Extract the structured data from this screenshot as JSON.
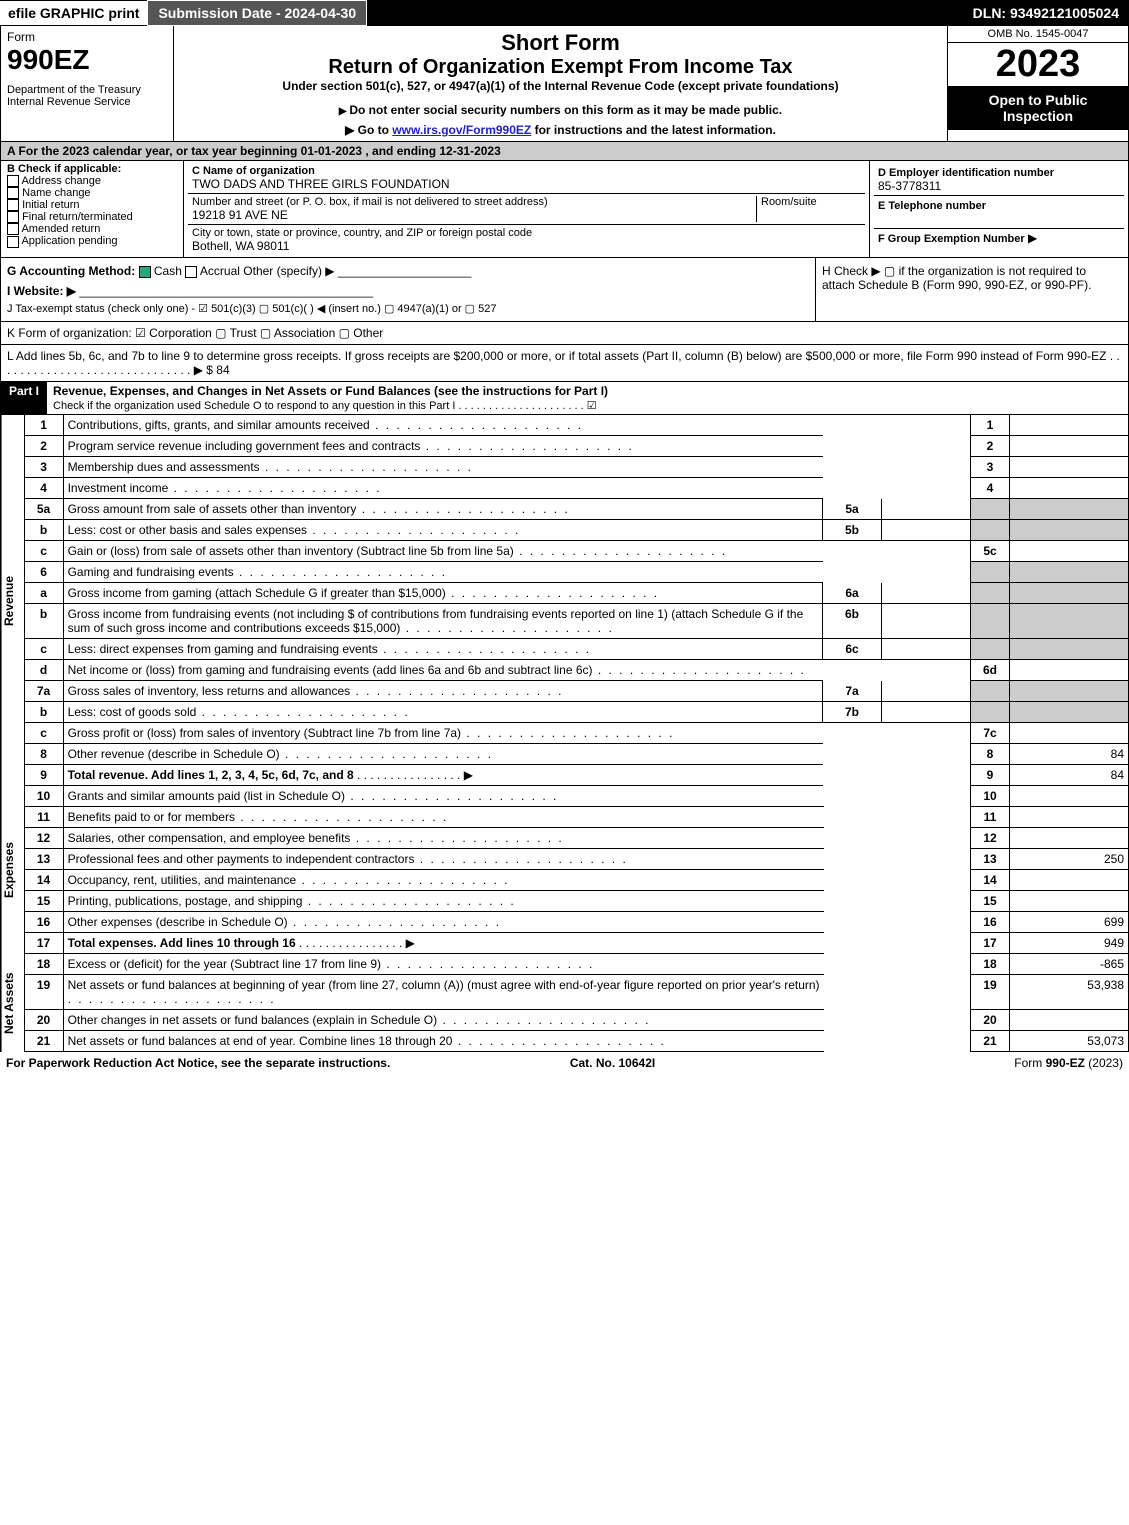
{
  "topbar": {
    "efile": "efile GRAPHIC print",
    "submission": "Submission Date - 2024-04-30",
    "dln": "DLN: 93492121005024"
  },
  "header": {
    "form": "Form",
    "form_no": "990EZ",
    "dept": "Department of the Treasury",
    "irs": "Internal Revenue Service",
    "short": "Short Form",
    "title": "Return of Organization Exempt From Income Tax",
    "under": "Under section 501(c), 527, or 4947(a)(1) of the Internal Revenue Code (except private foundations)",
    "ssn": "Do not enter social security numbers on this form as it may be made public.",
    "goto": "Go to ",
    "goto_link": "www.irs.gov/Form990EZ",
    "goto2": " for instructions and the latest information.",
    "omb": "OMB No. 1545-0047",
    "year": "2023",
    "open": "Open to Public Inspection"
  },
  "A": "A  For the 2023 calendar year, or tax year beginning 01-01-2023 , and ending 12-31-2023",
  "B": {
    "label": "B  Check if applicable:",
    "opts": [
      "Address change",
      "Name change",
      "Initial return",
      "Final return/terminated",
      "Amended return",
      "Application pending"
    ]
  },
  "C": {
    "label": "C Name of organization",
    "name": "TWO DADS AND THREE GIRLS FOUNDATION",
    "addr_label": "Number and street (or P. O. box, if mail is not delivered to street address)",
    "room": "Room/suite",
    "addr": "19218 91 AVE NE",
    "city_label": "City or town, state or province, country, and ZIP or foreign postal code",
    "city": "Bothell, WA  98011"
  },
  "D": {
    "label": "D Employer identification number",
    "ein": "85-3778311",
    "E": "E Telephone number",
    "F": "F Group Exemption Number",
    "arrow": "▶"
  },
  "G": {
    "label": "G Accounting Method:",
    "cash": "Cash",
    "accrual": "Accrual",
    "other": "Other (specify) ▶"
  },
  "H": "H   Check ▶  ▢  if the organization is not required to attach Schedule B (Form 990, 990-EZ, or 990-PF).",
  "I": "I Website: ▶",
  "J": "J Tax-exempt status (check only one) - ☑ 501(c)(3)  ▢ 501(c)(  ) ◀ (insert no.)  ▢ 4947(a)(1) or  ▢ 527",
  "K": "K Form of organization:  ☑ Corporation  ▢ Trust  ▢ Association  ▢ Other",
  "L": "L Add lines 5b, 6c, and 7b to line 9 to determine gross receipts. If gross receipts are $200,000 or more, or if total assets (Part II, column (B) below) are $500,000 or more, file Form 990 instead of Form 990-EZ .  .  .  .  .  .  .  .  .  .  .  .  .  .  .  .  .  .  .  .  .  .  .  .  .  .  .  .  .  . ▶ $ 84",
  "partI": {
    "label": "Part I",
    "title": "Revenue, Expenses, and Changes in Net Assets or Fund Balances (see the instructions for Part I)",
    "check": "Check if the organization used Schedule O to respond to any question in this Part I .  .  .  .  .  .  .  .  .  .  .  .  .  .  .  .  .  .  .  .  .  ☑"
  },
  "sections": {
    "rev": "Revenue",
    "exp": "Expenses",
    "na": "Net Assets"
  },
  "lines": [
    {
      "n": "1",
      "t": "Contributions, gifts, grants, and similar amounts received",
      "rn": "1",
      "rv": ""
    },
    {
      "n": "2",
      "t": "Program service revenue including government fees and contracts",
      "rn": "2",
      "rv": ""
    },
    {
      "n": "3",
      "t": "Membership dues and assessments",
      "rn": "3",
      "rv": ""
    },
    {
      "n": "4",
      "t": "Investment income",
      "rn": "4",
      "rv": ""
    },
    {
      "n": "5a",
      "t": "Gross amount from sale of assets other than inventory",
      "mid": "5a",
      "shade": true
    },
    {
      "n": "b",
      "t": "Less: cost or other basis and sales expenses",
      "mid": "5b",
      "shade": true
    },
    {
      "n": "c",
      "t": "Gain or (loss) from sale of assets other than inventory (Subtract line 5b from line 5a)",
      "rn": "5c",
      "rv": ""
    },
    {
      "n": "6",
      "t": "Gaming and fundraising events",
      "shade": true,
      "noborder": true
    },
    {
      "n": "a",
      "t": "Gross income from gaming (attach Schedule G if greater than $15,000)",
      "mid": "6a",
      "shade": true
    },
    {
      "n": "b",
      "t": "Gross income from fundraising events (not including $                        of contributions from fundraising events reported on line 1) (attach Schedule G if the sum of such gross income and contributions exceeds $15,000)",
      "mid": "6b",
      "shade": true
    },
    {
      "n": "c",
      "t": "Less: direct expenses from gaming and fundraising events",
      "mid": "6c",
      "shade": true
    },
    {
      "n": "d",
      "t": "Net income or (loss) from gaming and fundraising events (add lines 6a and 6b and subtract line 6c)",
      "rn": "6d",
      "rv": ""
    },
    {
      "n": "7a",
      "t": "Gross sales of inventory, less returns and allowances",
      "mid": "7a",
      "shade": true
    },
    {
      "n": "b",
      "t": "Less: cost of goods sold",
      "mid": "7b",
      "shade": true
    },
    {
      "n": "c",
      "t": "Gross profit or (loss) from sales of inventory (Subtract line 7b from line 7a)",
      "rn": "7c",
      "rv": ""
    },
    {
      "n": "8",
      "t": "Other revenue (describe in Schedule O)",
      "rn": "8",
      "rv": "84"
    },
    {
      "n": "9",
      "t": "Total revenue. Add lines 1, 2, 3, 4, 5c, 6d, 7c, and 8",
      "rn": "9",
      "rv": "84",
      "bold": true,
      "arrow": true
    }
  ],
  "exp": [
    {
      "n": "10",
      "t": "Grants and similar amounts paid (list in Schedule O)",
      "rn": "10",
      "rv": ""
    },
    {
      "n": "11",
      "t": "Benefits paid to or for members",
      "rn": "11",
      "rv": ""
    },
    {
      "n": "12",
      "t": "Salaries, other compensation, and employee benefits",
      "rn": "12",
      "rv": ""
    },
    {
      "n": "13",
      "t": "Professional fees and other payments to independent contractors",
      "rn": "13",
      "rv": "250"
    },
    {
      "n": "14",
      "t": "Occupancy, rent, utilities, and maintenance",
      "rn": "14",
      "rv": ""
    },
    {
      "n": "15",
      "t": "Printing, publications, postage, and shipping",
      "rn": "15",
      "rv": ""
    },
    {
      "n": "16",
      "t": "Other expenses (describe in Schedule O)",
      "rn": "16",
      "rv": "699"
    },
    {
      "n": "17",
      "t": "Total expenses. Add lines 10 through 16",
      "rn": "17",
      "rv": "949",
      "bold": true,
      "arrow": true
    }
  ],
  "na": [
    {
      "n": "18",
      "t": "Excess or (deficit) for the year (Subtract line 17 from line 9)",
      "rn": "18",
      "rv": "-865"
    },
    {
      "n": "19",
      "t": "Net assets or fund balances at beginning of year (from line 27, column (A)) (must agree with end-of-year figure reported on prior year's return)",
      "rn": "19",
      "rv": "53,938"
    },
    {
      "n": "20",
      "t": "Other changes in net assets or fund balances (explain in Schedule O)",
      "rn": "20",
      "rv": ""
    },
    {
      "n": "21",
      "t": "Net assets or fund balances at end of year. Combine lines 18 through 20",
      "rn": "21",
      "rv": "53,073",
      "arrow": true
    }
  ],
  "footer": {
    "l": "For Paperwork Reduction Act Notice, see the separate instructions.",
    "c": "Cat. No. 10642I",
    "r": "Form ",
    "rb": "990-EZ",
    "r2": " (2023)"
  }
}
